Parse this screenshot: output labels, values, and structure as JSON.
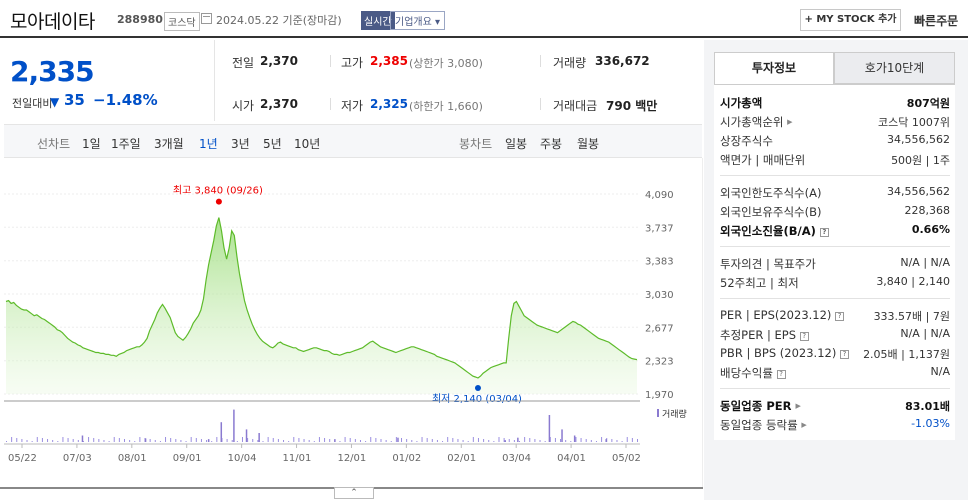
{
  "header": {
    "company_name": "모아데이타",
    "code": "288980",
    "market": "코스닥",
    "date_text": "2024.05.22  기준(장마감)",
    "realtime_label": "실시간",
    "company_info_label": "기업개요 ▾",
    "mystock_label": "+ MY STOCK 추가",
    "quick_order_label": "빠른주문"
  },
  "quote": {
    "current_price": "2,335",
    "change_label": "전일대비",
    "change_arrow": "▼",
    "change_value": "35",
    "change_rate": "−1.48%",
    "prev_close_label": "전일",
    "prev_close": "2,370",
    "open_label": "시가",
    "open": "2,370",
    "high_label": "고가",
    "high": "2,385",
    "upper_limit": "(상한가 3,080)",
    "low_label": "저가",
    "low": "2,325",
    "lower_limit": "(하한가 1,660)",
    "volume_label": "거래량",
    "volume": "336,672",
    "amount_label": "거래대금",
    "amount": "790 백만"
  },
  "tabs": {
    "line_header": "선차트",
    "line_tabs": [
      "1일",
      "1주일",
      "3개월",
      "1년",
      "3년",
      "5년",
      "10년"
    ],
    "active_tab": "1년",
    "candle_header": "봉차트",
    "candle_tabs": [
      "일봉",
      "주봉",
      "월봉"
    ]
  },
  "right_panel": {
    "tab_active": "투자정보",
    "tab_other": "호가10단계",
    "rows1": [
      {
        "k": "시가총액",
        "v": "807억원"
      },
      {
        "k": "시가총액순위",
        "v": "코스닥 1007위"
      },
      {
        "k": "상장주식수",
        "v": "34,556,562"
      },
      {
        "k": "액면가 | 매매단위",
        "v": "500원 | 1주"
      }
    ],
    "rows2": [
      {
        "k": "외국인한도주식수(A)",
        "v": "34,556,562"
      },
      {
        "k": "외국인보유주식수(B)",
        "v": "228,368"
      },
      {
        "k": "외국인소진율(B/A)",
        "v": "0.66%"
      }
    ],
    "rows3": [
      {
        "k": "투자의견 | 목표주가",
        "v": "N/A | N/A"
      },
      {
        "k": "52주최고 | 최저",
        "v": "3,840 | 2,140"
      }
    ],
    "rows4": [
      {
        "k": "PER | EPS(2023.12)",
        "v": "333.57배 | 7원"
      },
      {
        "k": "추정PER | EPS",
        "v": "N/A | N/A"
      },
      {
        "k": "PBR | BPS (2023.12)",
        "v": "2.05배 | 1,137원"
      },
      {
        "k": "배당수익률",
        "v": "N/A"
      }
    ],
    "rows5": [
      {
        "k": "동일업종 PER",
        "v": "83.01배"
      },
      {
        "k": "동일업종 등락률",
        "v": "-1.03%"
      }
    ]
  },
  "chart_data": {
    "type": "line",
    "title": "",
    "y_ticks": [
      4090,
      3737,
      3383,
      3030,
      2677,
      2323,
      1970
    ],
    "y_tick_labels": [
      "4,090",
      "3,737",
      "3,383",
      "3,030",
      "2,677",
      "2,323",
      "1,970"
    ],
    "ylim": [
      1970,
      4090
    ],
    "x_tick_labels": [
      "05/22",
      "07/03",
      "08/01",
      "09/01",
      "10/04",
      "11/01",
      "12/01",
      "01/02",
      "02/01",
      "03/04",
      "04/01",
      "05/02"
    ],
    "high_annotation": "최고 3,840 (09/26)",
    "low_annotation": "최저 2,140 (03/04)",
    "volume_label": "거래량",
    "prices": [
      2950,
      2960,
      2930,
      2940,
      2910,
      2890,
      2870,
      2860,
      2860,
      2840,
      2820,
      2800,
      2810,
      2790,
      2770,
      2760,
      2740,
      2720,
      2700,
      2680,
      2650,
      2640,
      2620,
      2590,
      2560,
      2540,
      2520,
      2510,
      2490,
      2480,
      2460,
      2450,
      2440,
      2430,
      2420,
      2410,
      2410,
      2400,
      2400,
      2390,
      2390,
      2380,
      2380,
      2370,
      2390,
      2400,
      2410,
      2430,
      2440,
      2450,
      2460,
      2470,
      2470,
      2490,
      2520,
      2560,
      2640,
      2700,
      2760,
      2830,
      2880,
      2920,
      2880,
      2830,
      2780,
      2700,
      2620,
      2580,
      2560,
      2540,
      2570,
      2610,
      2660,
      2720,
      2760,
      2800,
      2860,
      2980,
      3180,
      3340,
      3470,
      3600,
      3750,
      3840,
      3700,
      3520,
      3400,
      3520,
      3700,
      3650,
      3430,
      3250,
      3100,
      2960,
      2860,
      2780,
      2710,
      2650,
      2600,
      2560,
      2530,
      2510,
      2490,
      2470,
      2460,
      2480,
      2510,
      2520,
      2500,
      2490,
      2480,
      2470,
      2460,
      2460,
      2440,
      2430,
      2420,
      2430,
      2440,
      2450,
      2460,
      2460,
      2450,
      2440,
      2430,
      2430,
      2420,
      2400,
      2390,
      2390,
      2380,
      2390,
      2400,
      2410,
      2410,
      2420,
      2430,
      2440,
      2450,
      2460,
      2480,
      2500,
      2520,
      2530,
      2510,
      2490,
      2470,
      2460,
      2450,
      2440,
      2430,
      2420,
      2410,
      2420,
      2430,
      2440,
      2450,
      2460,
      2470,
      2470,
      2460,
      2450,
      2440,
      2430,
      2420,
      2410,
      2400,
      2390,
      2370,
      2360,
      2350,
      2340,
      2330,
      2320,
      2310,
      2300,
      2280,
      2260,
      2240,
      2220,
      2200,
      2180,
      2160,
      2150,
      2140,
      2160,
      2190,
      2210,
      2230,
      2250,
      2260,
      2270,
      2280,
      2290,
      2300,
      2300,
      2560,
      2800,
      2930,
      2950,
      2900,
      2850,
      2800,
      2780,
      2760,
      2740,
      2720,
      2700,
      2690,
      2680,
      2670,
      2660,
      2650,
      2640,
      2630,
      2620,
      2640,
      2660,
      2680,
      2700,
      2720,
      2740,
      2730,
      2710,
      2700,
      2680,
      2660,
      2640,
      2620,
      2600,
      2580,
      2560,
      2550,
      2540,
      2530,
      2520,
      2500,
      2480,
      2460,
      2440,
      2420,
      2400,
      2380,
      2360,
      2345,
      2340,
      2335
    ],
    "volume_spikes": [
      [
        0.32,
        0.08
      ],
      [
        0.34,
        0.55
      ],
      [
        0.36,
        0.9
      ],
      [
        0.38,
        0.35
      ],
      [
        0.4,
        0.25
      ],
      [
        0.12,
        0.18
      ],
      [
        0.22,
        0.1
      ],
      [
        0.52,
        0.08
      ],
      [
        0.62,
        0.12
      ],
      [
        0.79,
        0.05
      ],
      [
        0.81,
        0.12
      ],
      [
        0.86,
        0.75
      ],
      [
        0.88,
        0.35
      ],
      [
        0.9,
        0.18
      ],
      [
        0.95,
        0.08
      ]
    ]
  }
}
